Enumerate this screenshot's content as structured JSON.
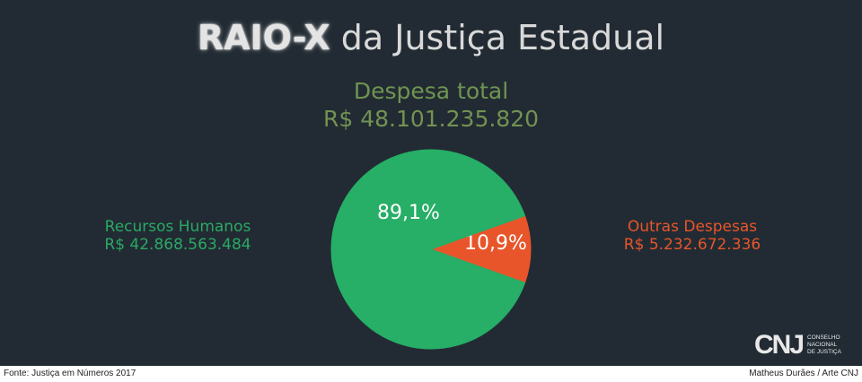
{
  "title": {
    "bold": "RAIO-X",
    "rest": "da Justiça Estadual"
  },
  "total": {
    "label": "Despesa total",
    "amount": "R$ 48.101.235.820"
  },
  "colors": {
    "hr": "#27ae67",
    "other": "#e8552a",
    "background": "#222b33"
  },
  "chart_data": {
    "type": "pie",
    "slices": [
      {
        "label": "Recursos Humanos",
        "value": 42868563484,
        "amount_text": "R$ 42.868.563.484",
        "percent": 89.1,
        "percent_text": "89,1%",
        "color": "#27ae67"
      },
      {
        "label": "Outras Despesas",
        "value": 5232672336,
        "amount_text": "R$ 5.232.672.336",
        "percent": 10.9,
        "percent_text": "10,9%",
        "color": "#e8552a"
      }
    ]
  },
  "logo": {
    "mark": "CNJ",
    "lines": [
      "CONSELHO",
      "NACIONAL",
      "DE JUSTIÇA"
    ]
  },
  "footer": {
    "source": "Fonte: Justiça em Números 2017",
    "credit": "Matheus Durães / Arte CNJ"
  }
}
